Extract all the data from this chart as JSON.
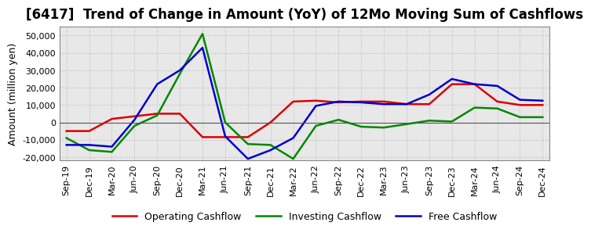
{
  "title": "[6417]  Trend of Change in Amount (YoY) of 12Mo Moving Sum of Cashflows",
  "ylabel": "Amount (million yen)",
  "x_labels": [
    "Sep-19",
    "Dec-19",
    "Mar-20",
    "Jun-20",
    "Sep-20",
    "Dec-20",
    "Mar-21",
    "Jun-21",
    "Sep-21",
    "Dec-21",
    "Mar-22",
    "Jun-22",
    "Sep-22",
    "Dec-22",
    "Mar-23",
    "Jun-23",
    "Sep-23",
    "Dec-23",
    "Mar-24",
    "Jun-24",
    "Sep-24",
    "Dec-24"
  ],
  "operating": [
    -5000,
    -5000,
    2000,
    3500,
    5000,
    5000,
    -8500,
    -8500,
    -8500,
    0,
    12000,
    12500,
    11500,
    12000,
    12000,
    10500,
    10500,
    22000,
    22000,
    12000,
    10000,
    10000
  ],
  "investing": [
    -9000,
    -16000,
    -17000,
    -2000,
    4000,
    28000,
    51000,
    0,
    -12500,
    -13000,
    -21000,
    -2000,
    1500,
    -2500,
    -3000,
    -1000,
    1000,
    500,
    8500,
    8000,
    3000,
    3000
  ],
  "free": [
    -13000,
    -13000,
    -14000,
    1500,
    22000,
    30000,
    43000,
    -8000,
    -21000,
    -16000,
    -9000,
    9500,
    12000,
    11500,
    10500,
    10500,
    16000,
    25000,
    22000,
    21000,
    13000,
    12500
  ],
  "operating_color": "#dd0000",
  "investing_color": "#008800",
  "free_color": "#0000cc",
  "ylim": [
    -22000,
    55000
  ],
  "yticks": [
    -20000,
    -10000,
    0,
    10000,
    20000,
    30000,
    40000,
    50000
  ],
  "plot_bg_color": "#e8e8e8",
  "fig_bg_color": "#ffffff",
  "grid_color": "#bbbbbb",
  "title_fontsize": 12,
  "axis_fontsize": 9,
  "tick_fontsize": 8,
  "legend_fontsize": 9
}
